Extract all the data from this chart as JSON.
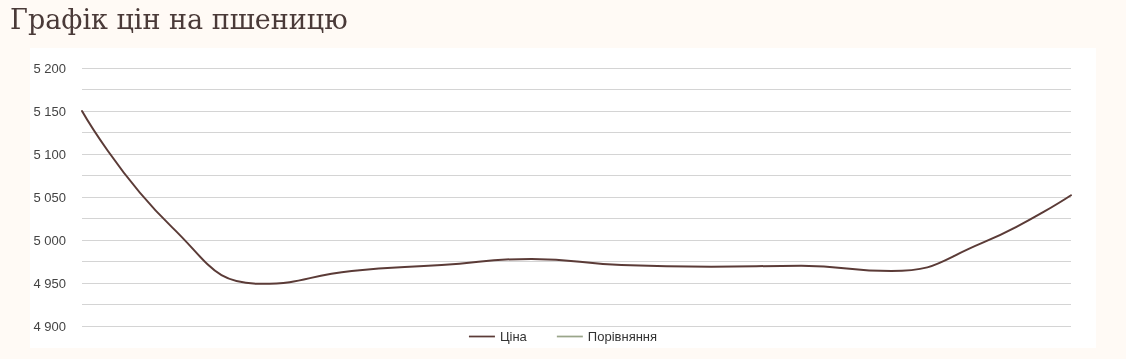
{
  "chart_data": {
    "type": "line",
    "title": "Графік цін на пшеницю",
    "categories": [
      null,
      null,
      null,
      null,
      null,
      null,
      null,
      null,
      null,
      null,
      null,
      null
    ],
    "series": [
      {
        "name": "Ціна",
        "color": "#5b3b37",
        "values": [
          5150,
          5015,
          4949,
          4964,
          4971,
          4978,
          4971,
          4969,
          4970,
          4964,
          4996,
          5052
        ]
      },
      {
        "name": "Порівняння",
        "color": "#9aa58a",
        "values": [
          null,
          null,
          null,
          null,
          null,
          null,
          null,
          null,
          null,
          null,
          null,
          null
        ]
      }
    ],
    "ylim": [
      4900,
      5200
    ],
    "yticks": [
      {
        "value": 4900,
        "label": "4 900"
      },
      {
        "value": 4925,
        "label": null
      },
      {
        "value": 4950,
        "label": "4 950"
      },
      {
        "value": 4975,
        "label": null
      },
      {
        "value": 5000,
        "label": "5 000"
      },
      {
        "value": 5025,
        "label": null
      },
      {
        "value": 5050,
        "label": "5 050"
      },
      {
        "value": 5075,
        "label": null
      },
      {
        "value": 5100,
        "label": "5 100"
      },
      {
        "value": 5125,
        "label": null
      },
      {
        "value": 5150,
        "label": "5 150"
      },
      {
        "value": 5175,
        "label": null
      },
      {
        "value": 5200,
        "label": "5 200"
      }
    ],
    "grid": true,
    "legend": "bottom",
    "marker": "none",
    "line_style": "solid",
    "tick_labels": "y"
  }
}
